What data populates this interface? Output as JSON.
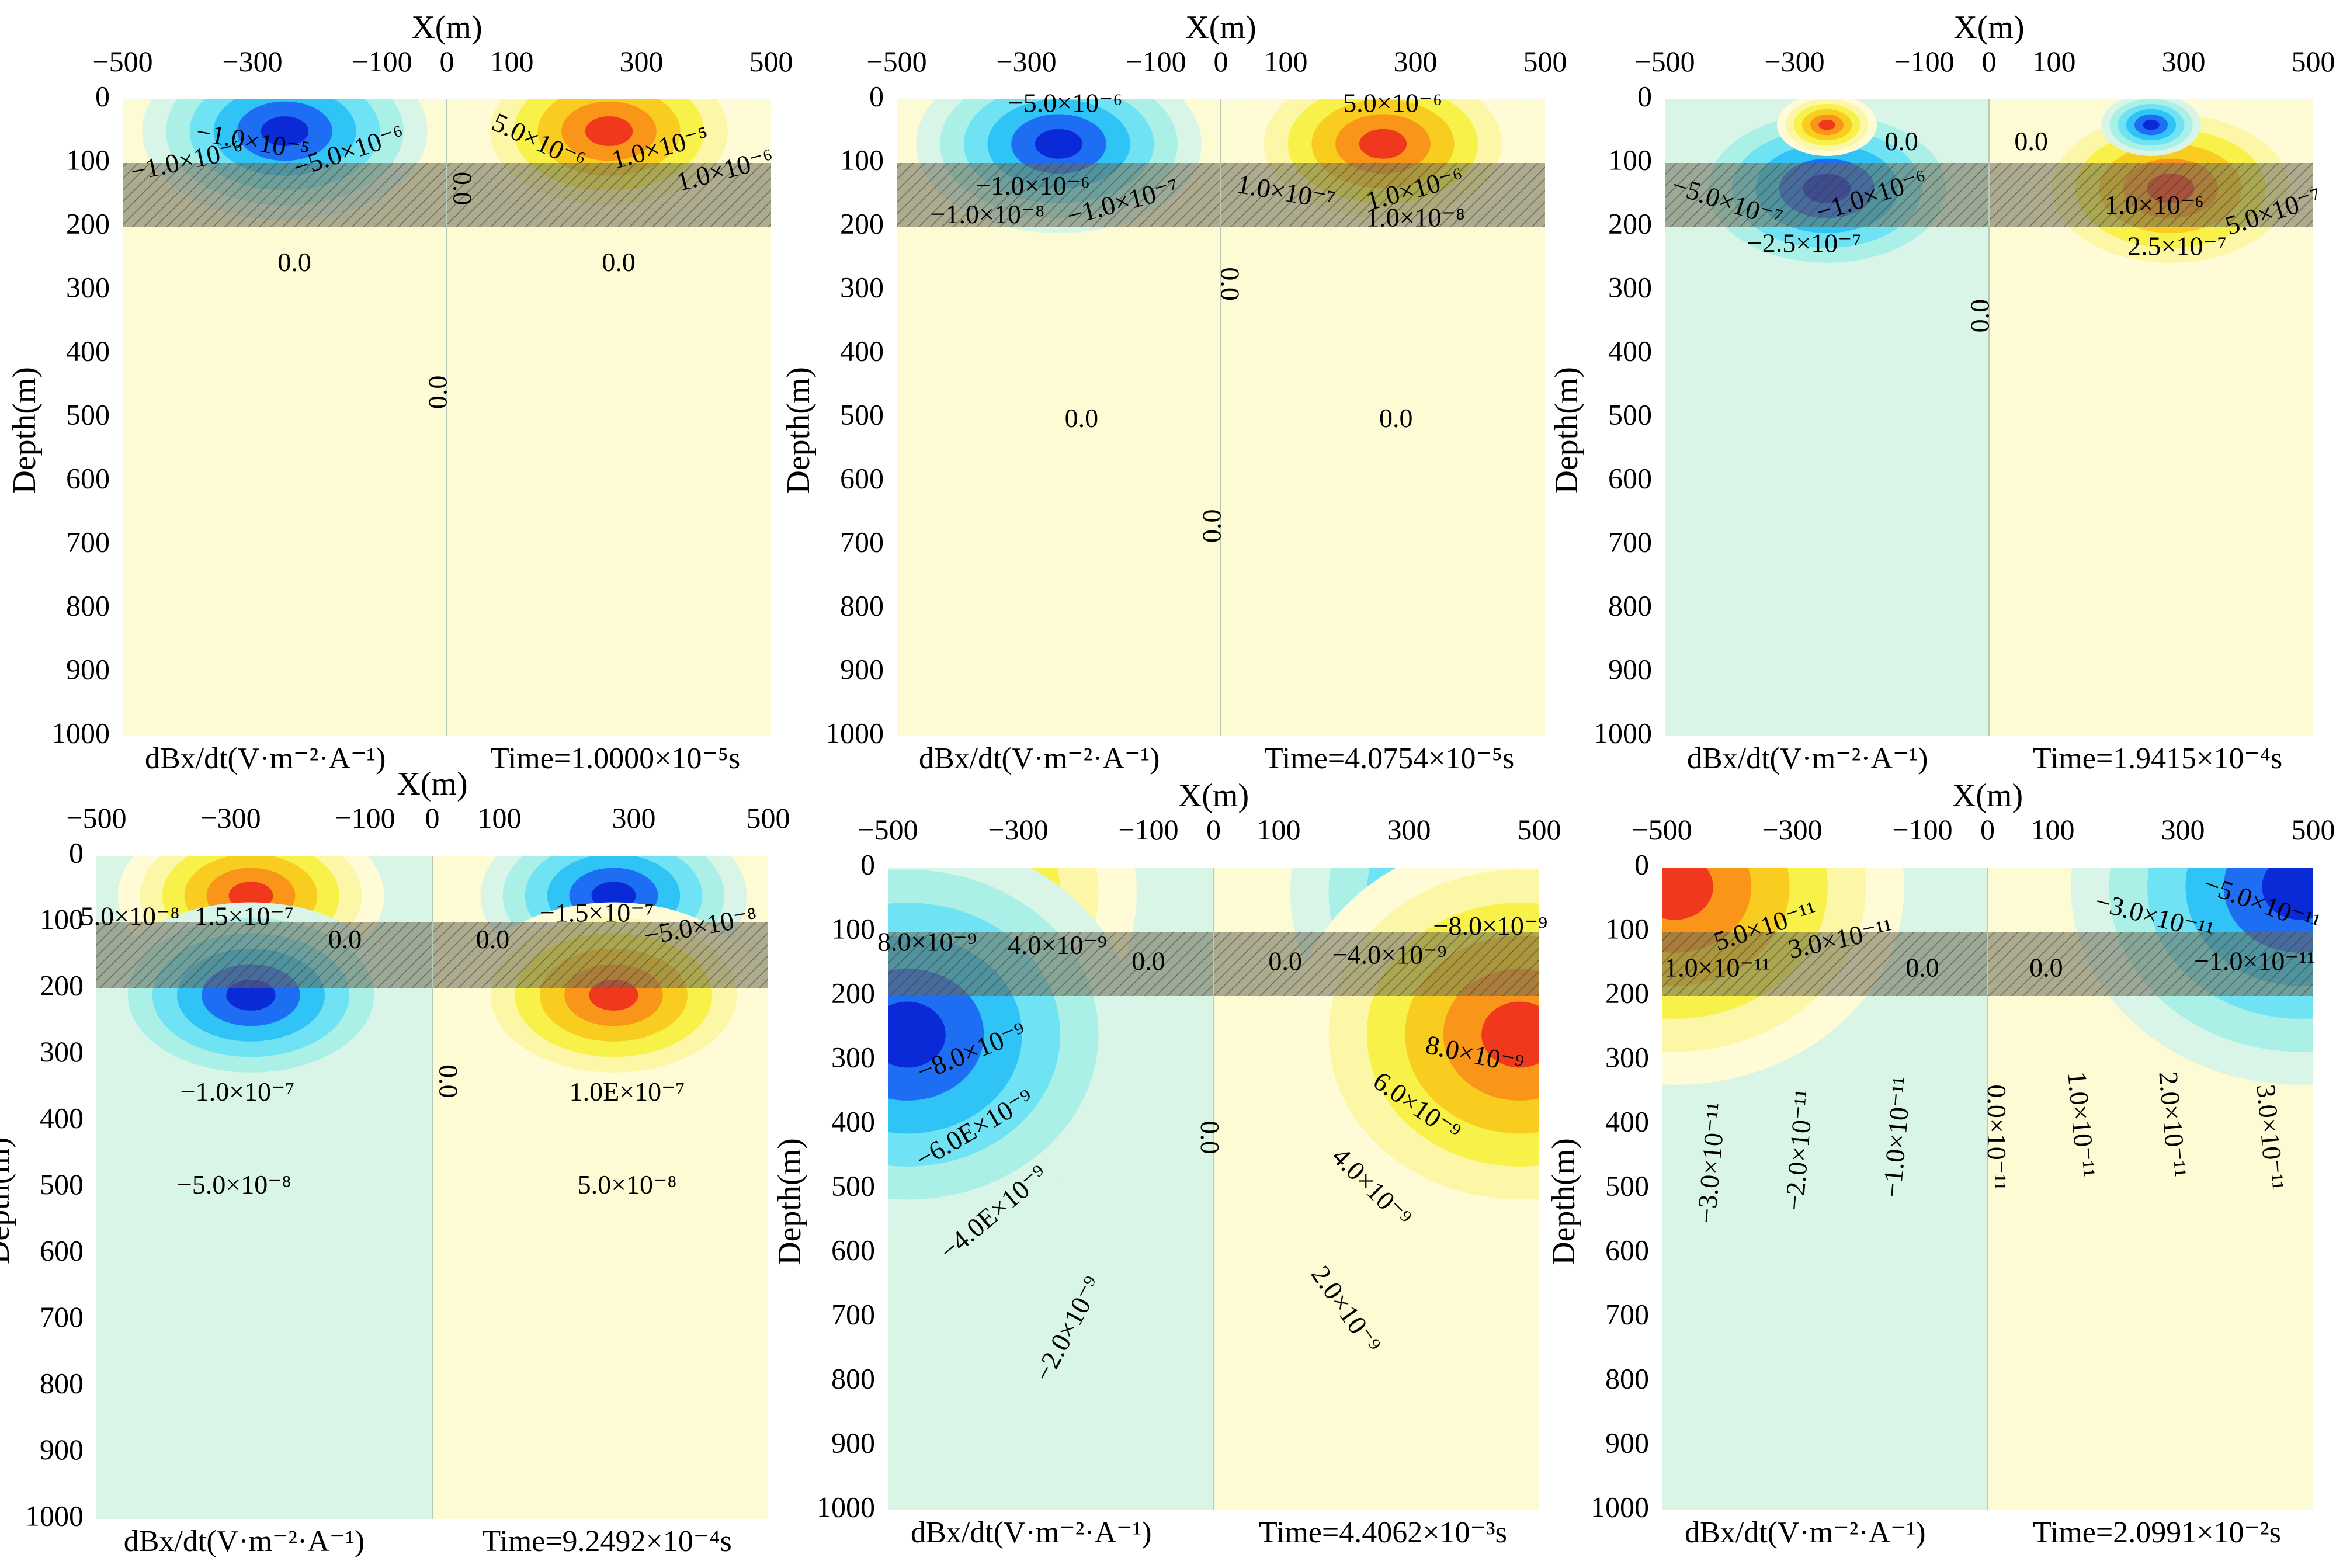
{
  "chart_data": [
    {
      "type": "heatmap",
      "panel": 1,
      "xlabel": "X(m)",
      "ylabel": "Depth(m)",
      "x_ticks": [
        "−500",
        "−300",
        "−100",
        "0",
        "100",
        "300",
        "500"
      ],
      "y_ticks": [
        "0",
        "100",
        "200",
        "300",
        "400",
        "500",
        "600",
        "700",
        "800",
        "900",
        "1000"
      ],
      "xlim": [
        -500,
        500
      ],
      "ylim": [
        0,
        1000
      ],
      "layer_depth": [
        100,
        200
      ],
      "quantity_label": "dBx/dt(V·m⁻²·A⁻¹)",
      "time_label": "Time=1.0000×10⁻⁵s",
      "anomalies": [
        {
          "x": -250,
          "depth": 50,
          "sign": -1,
          "strength": 1.0
        },
        {
          "x": 250,
          "depth": 50,
          "sign": 1,
          "strength": 1.0
        }
      ],
      "contour_labels": [
        {
          "text": "−1.0×10⁻⁵",
          "x": -300,
          "depth": 70,
          "angle": 10
        },
        {
          "text": "−1.0×10⁻⁶",
          "x": -400,
          "depth": 100,
          "angle": -12
        },
        {
          "text": "−5.0×10⁻⁶",
          "x": -150,
          "depth": 85,
          "angle": -18
        },
        {
          "text": "5.0×10⁻⁶",
          "x": 140,
          "depth": 70,
          "angle": 25
        },
        {
          "text": "1.0×10⁻⁵",
          "x": 330,
          "depth": 80,
          "angle": -15
        },
        {
          "text": "1.0×10⁻⁶",
          "x": 430,
          "depth": 115,
          "angle": -15
        },
        {
          "text": "0.0",
          "x": 20,
          "depth": 140,
          "angle": 90
        },
        {
          "text": "0.0",
          "x": -235,
          "depth": 260,
          "angle": 0
        },
        {
          "text": "0.0",
          "x": 265,
          "depth": 260,
          "angle": 0
        },
        {
          "text": "0.0",
          "x": -10,
          "depth": 460,
          "angle": -90
        }
      ]
    },
    {
      "type": "heatmap",
      "panel": 2,
      "xlabel": "X(m)",
      "ylabel": "Depth(m)",
      "x_ticks": [
        "−500",
        "−300",
        "−100",
        "0",
        "100",
        "300",
        "500"
      ],
      "y_ticks": [
        "0",
        "100",
        "200",
        "300",
        "400",
        "500",
        "600",
        "700",
        "800",
        "900",
        "1000"
      ],
      "xlim": [
        -500,
        500
      ],
      "ylim": [
        0,
        1000
      ],
      "layer_depth": [
        100,
        200
      ],
      "quantity_label": "dBx/dt(V·m⁻²·A⁻¹)",
      "time_label": "Time=4.0754×10⁻⁵s",
      "anomalies": [
        {
          "x": -250,
          "depth": 70,
          "sign": -1,
          "strength": 1.0
        },
        {
          "x": 250,
          "depth": 70,
          "sign": 1,
          "strength": 1.0
        }
      ],
      "contour_labels": [
        {
          "text": "−5.0×10⁻⁶",
          "x": -240,
          "depth": 10,
          "angle": 0
        },
        {
          "text": "5.0×10⁻⁶",
          "x": 265,
          "depth": 10,
          "angle": 0
        },
        {
          "text": "−1.0×10⁻⁶",
          "x": -290,
          "depth": 140,
          "angle": 0
        },
        {
          "text": "−1.0×10⁻⁸",
          "x": -360,
          "depth": 185,
          "angle": 0
        },
        {
          "text": "−1.0×10⁻⁷",
          "x": -150,
          "depth": 165,
          "angle": -15
        },
        {
          "text": "1.0×10⁻⁷",
          "x": 100,
          "depth": 150,
          "angle": 10
        },
        {
          "text": "1.0×10⁻⁶",
          "x": 300,
          "depth": 145,
          "angle": -15
        },
        {
          "text": "1.0×10⁻⁸",
          "x": 300,
          "depth": 190,
          "angle": 0
        },
        {
          "text": "0.0",
          "x": 10,
          "depth": 290,
          "angle": 90
        },
        {
          "text": "0.0",
          "x": -215,
          "depth": 505,
          "angle": 0
        },
        {
          "text": "0.0",
          "x": 270,
          "depth": 505,
          "angle": 0
        },
        {
          "text": "0.0",
          "x": -10,
          "depth": 670,
          "angle": -90
        }
      ]
    },
    {
      "type": "heatmap",
      "panel": 3,
      "xlabel": "X(m)",
      "ylabel": "Depth(m)",
      "x_ticks": [
        "−500",
        "−300",
        "−100",
        "0",
        "100",
        "300",
        "500"
      ],
      "y_ticks": [
        "0",
        "100",
        "200",
        "300",
        "400",
        "500",
        "600",
        "700",
        "800",
        "900",
        "1000"
      ],
      "xlim": [
        -500,
        500
      ],
      "ylim": [
        0,
        1000
      ],
      "layer_depth": [
        100,
        200
      ],
      "quantity_label": "dBx/dt(V·m⁻²·A⁻¹)",
      "time_label": "Time=1.9415×10⁻⁴s",
      "anomalies": [
        {
          "x": -250,
          "depth": 140,
          "sign": -1,
          "strength": 1.0
        },
        {
          "x": 280,
          "depth": 140,
          "sign": 1,
          "strength": 1.0
        },
        {
          "x": -250,
          "depth": 40,
          "sign": 1,
          "strength": 0.35
        },
        {
          "x": 250,
          "depth": 40,
          "sign": -1,
          "strength": 0.35
        }
      ],
      "contour_labels": [
        {
          "text": "0.0",
          "x": -135,
          "depth": 70,
          "angle": 0
        },
        {
          "text": "0.0",
          "x": 65,
          "depth": 70,
          "angle": 0
        },
        {
          "text": "−5.0×10⁻⁷",
          "x": -405,
          "depth": 165,
          "angle": 18
        },
        {
          "text": "−1.0×10⁻⁶",
          "x": -180,
          "depth": 155,
          "angle": -18
        },
        {
          "text": "−2.5×10⁻⁷",
          "x": -285,
          "depth": 230,
          "angle": 0
        },
        {
          "text": "1.0×10⁻⁶",
          "x": 255,
          "depth": 170,
          "angle": 0
        },
        {
          "text": "5.0×10⁻⁷",
          "x": 440,
          "depth": 180,
          "angle": -18
        },
        {
          "text": "2.5×10⁻⁷",
          "x": 290,
          "depth": 235,
          "angle": 0
        },
        {
          "text": "0.0",
          "x": -10,
          "depth": 340,
          "angle": -90
        }
      ]
    },
    {
      "type": "heatmap",
      "panel": 4,
      "xlabel": "X(m)",
      "ylabel": "Depth(m)",
      "x_ticks": [
        "−500",
        "−300",
        "−100",
        "0",
        "100",
        "300",
        "500"
      ],
      "y_ticks": [
        "0",
        "100",
        "200",
        "300",
        "400",
        "500",
        "600",
        "700",
        "800",
        "900",
        "1000"
      ],
      "xlim": [
        -500,
        500
      ],
      "ylim": [
        0,
        1000
      ],
      "layer_depth": [
        100,
        200
      ],
      "quantity_label": "dBx/dt(V·m⁻²·A⁻¹)",
      "time_label": "Time=9.2492×10⁻⁴s",
      "anomalies": [
        {
          "x": -270,
          "depth": 60,
          "sign": 1,
          "strength": 0.9
        },
        {
          "x": 270,
          "depth": 60,
          "sign": -1,
          "strength": 0.9
        },
        {
          "x": -270,
          "depth": 210,
          "sign": -1,
          "strength": 1.0
        },
        {
          "x": 270,
          "depth": 210,
          "sign": 1,
          "strength": 1.0
        }
      ],
      "contour_labels": [
        {
          "text": "5.0×10⁻⁸",
          "x": -450,
          "depth": 95,
          "angle": 0
        },
        {
          "text": "1.5×10⁻⁷",
          "x": -280,
          "depth": 95,
          "angle": 0
        },
        {
          "text": "0.0",
          "x": -130,
          "depth": 130,
          "angle": 0
        },
        {
          "text": "0.0",
          "x": 90,
          "depth": 130,
          "angle": 0
        },
        {
          "text": "−1.5×10⁻⁷",
          "x": 245,
          "depth": 90,
          "angle": 0
        },
        {
          "text": "−5.0×10⁻⁸",
          "x": 400,
          "depth": 110,
          "angle": -10
        },
        {
          "text": "0.0",
          "x": 20,
          "depth": 340,
          "angle": 90
        },
        {
          "text": "−1.0×10⁻⁷",
          "x": -290,
          "depth": 360,
          "angle": 0
        },
        {
          "text": "1.0E×10⁻⁷",
          "x": 290,
          "depth": 360,
          "angle": 0
        },
        {
          "text": "−5.0×10⁻⁸",
          "x": -295,
          "depth": 500,
          "angle": 0
        },
        {
          "text": "5.0×10⁻⁸",
          "x": 290,
          "depth": 500,
          "angle": 0
        }
      ]
    },
    {
      "type": "heatmap",
      "panel": 5,
      "xlabel": "X(m)",
      "ylabel": "Depth(m)",
      "x_ticks": [
        "−500",
        "−300",
        "−100",
        "0",
        "100",
        "300",
        "500"
      ],
      "y_ticks": [
        "0",
        "100",
        "200",
        "300",
        "400",
        "500",
        "600",
        "700",
        "800",
        "900",
        "1000"
      ],
      "xlim": [
        -500,
        500
      ],
      "ylim": [
        0,
        1000
      ],
      "layer_depth": [
        100,
        200
      ],
      "quantity_label": "dBx/dt(V·m⁻²·A⁻¹)",
      "time_label": "Time=4.4062×10⁻³s",
      "anomalies": [
        {
          "x": -470,
          "depth": 40,
          "sign": 1,
          "strength": 1.0
        },
        {
          "x": 470,
          "depth": 40,
          "sign": -1,
          "strength": 1.0
        },
        {
          "x": -470,
          "depth": 260,
          "sign": -1,
          "strength": 1.0
        },
        {
          "x": 470,
          "depth": 260,
          "sign": 1,
          "strength": 1.0
        }
      ],
      "contour_labels": [
        {
          "text": "8.0×10⁻⁹",
          "x": -440,
          "depth": 120,
          "angle": 0
        },
        {
          "text": "4.0×10⁻⁹",
          "x": -240,
          "depth": 125,
          "angle": 0
        },
        {
          "text": "0.0",
          "x": -100,
          "depth": 150,
          "angle": 0
        },
        {
          "text": "0.0",
          "x": 110,
          "depth": 150,
          "angle": 0
        },
        {
          "text": "−4.0×10⁻⁹",
          "x": 270,
          "depth": 140,
          "angle": 0
        },
        {
          "text": "−8.0×10⁻⁹",
          "x": 425,
          "depth": 95,
          "angle": 0
        },
        {
          "text": "−8.0×10⁻⁹",
          "x": -370,
          "depth": 290,
          "angle": -22
        },
        {
          "text": "8.0×10⁻⁹",
          "x": 400,
          "depth": 295,
          "angle": 12
        },
        {
          "text": "−6.0E×10⁻⁹",
          "x": -365,
          "depth": 410,
          "angle": -30
        },
        {
          "text": "6.0×10⁻⁹",
          "x": 310,
          "depth": 375,
          "angle": 35
        },
        {
          "text": "0.0",
          "x": -10,
          "depth": 420,
          "angle": 90
        },
        {
          "text": "−4.0E×10⁻⁹",
          "x": -335,
          "depth": 540,
          "angle": -40
        },
        {
          "text": "4.0×10⁻⁹",
          "x": 240,
          "depth": 500,
          "angle": 45
        },
        {
          "text": "−2.0×10⁻⁹",
          "x": -220,
          "depth": 720,
          "angle": -62
        },
        {
          "text": "2.0×10⁻⁹",
          "x": 200,
          "depth": 690,
          "angle": 55
        }
      ]
    },
    {
      "type": "heatmap",
      "panel": 6,
      "xlabel": "X(m)",
      "ylabel": "Depth(m)",
      "x_ticks": [
        "−500",
        "−300",
        "−100",
        "0",
        "100",
        "300",
        "500"
      ],
      "y_ticks": [
        "0",
        "100",
        "200",
        "300",
        "400",
        "500",
        "600",
        "700",
        "800",
        "900",
        "1000"
      ],
      "xlim": [
        -500,
        500
      ],
      "ylim": [
        0,
        1000
      ],
      "layer_depth": [
        100,
        200
      ],
      "quantity_label": "dBx/dt(V·m⁻²·A⁻¹)",
      "time_label": "Time=2.0991×10⁻²s",
      "anomalies": [
        {
          "x": -480,
          "depth": 30,
          "sign": 1,
          "strength": 1.0
        },
        {
          "x": 480,
          "depth": 30,
          "sign": -1,
          "strength": 1.0
        }
      ],
      "contour_labels": [
        {
          "text": "5.0×10⁻¹¹",
          "x": -340,
          "depth": 95,
          "angle": -18
        },
        {
          "text": "3.0×10⁻¹¹",
          "x": -225,
          "depth": 115,
          "angle": -12
        },
        {
          "text": "1.0×10⁻¹¹",
          "x": -415,
          "depth": 160,
          "angle": 0
        },
        {
          "text": "0.0",
          "x": -100,
          "depth": 160,
          "angle": 0
        },
        {
          "text": "0.0",
          "x": 90,
          "depth": 160,
          "angle": 0
        },
        {
          "text": "−3.0×10⁻¹¹",
          "x": 255,
          "depth": 80,
          "angle": 15
        },
        {
          "text": "−5.0×10⁻¹¹",
          "x": 420,
          "depth": 60,
          "angle": 20
        },
        {
          "text": "−1.0×10⁻¹¹",
          "x": 410,
          "depth": 150,
          "angle": 0
        },
        {
          "text": "−3.0×10⁻¹¹",
          "x": -420,
          "depth": 460,
          "angle": -85
        },
        {
          "text": "−2.0×10⁻¹¹",
          "x": -285,
          "depth": 440,
          "angle": -85
        },
        {
          "text": "−1.0×10⁻¹¹",
          "x": -135,
          "depth": 420,
          "angle": -85
        },
        {
          "text": "0.0×10⁻¹¹",
          "x": 10,
          "depth": 420,
          "angle": 90
        },
        {
          "text": "1.0×10⁻¹¹",
          "x": 140,
          "depth": 400,
          "angle": 85
        },
        {
          "text": "2.0×10⁻¹¹",
          "x": 280,
          "depth": 400,
          "angle": 85
        },
        {
          "text": "3.0×10⁻¹¹",
          "x": 430,
          "depth": 420,
          "angle": 85
        }
      ]
    }
  ]
}
